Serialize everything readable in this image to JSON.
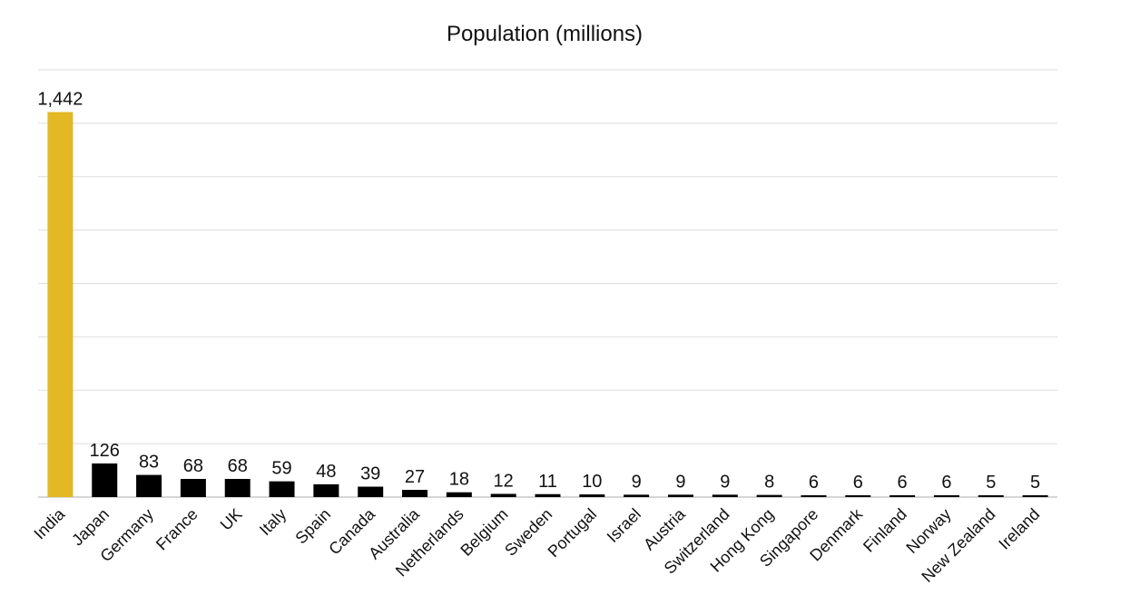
{
  "chart_data": {
    "type": "bar",
    "title": "Population (millions)",
    "xlabel": "",
    "ylabel": "",
    "ylim": [
      0,
      1600
    ],
    "ytick_step": 200,
    "grid": true,
    "categories": [
      "India",
      "Japan",
      "Germany",
      "France",
      "UK",
      "Italy",
      "Spain",
      "Canada",
      "Australia",
      "Netherlands",
      "Belgium",
      "Sweden",
      "Portugal",
      "Israel",
      "Austria",
      "Switzerland",
      "Hong Kong",
      "Singapore",
      "Denmark",
      "Finland",
      "Norway",
      "New Zealand",
      "Ireland"
    ],
    "values": [
      1442,
      126,
      83,
      68,
      68,
      59,
      48,
      39,
      27,
      18,
      12,
      11,
      10,
      9,
      9,
      9,
      8,
      6,
      6,
      6,
      6,
      5,
      5
    ],
    "value_labels": [
      "1,442",
      "126",
      "83",
      "68",
      "68",
      "59",
      "48",
      "39",
      "27",
      "18",
      "12",
      "11",
      "10",
      "9",
      "9",
      "9",
      "8",
      "6",
      "6",
      "6",
      "6",
      "5",
      "5"
    ],
    "colors": {
      "highlight": "#e2b824",
      "default": "#000000"
    },
    "highlight_category": "India"
  }
}
